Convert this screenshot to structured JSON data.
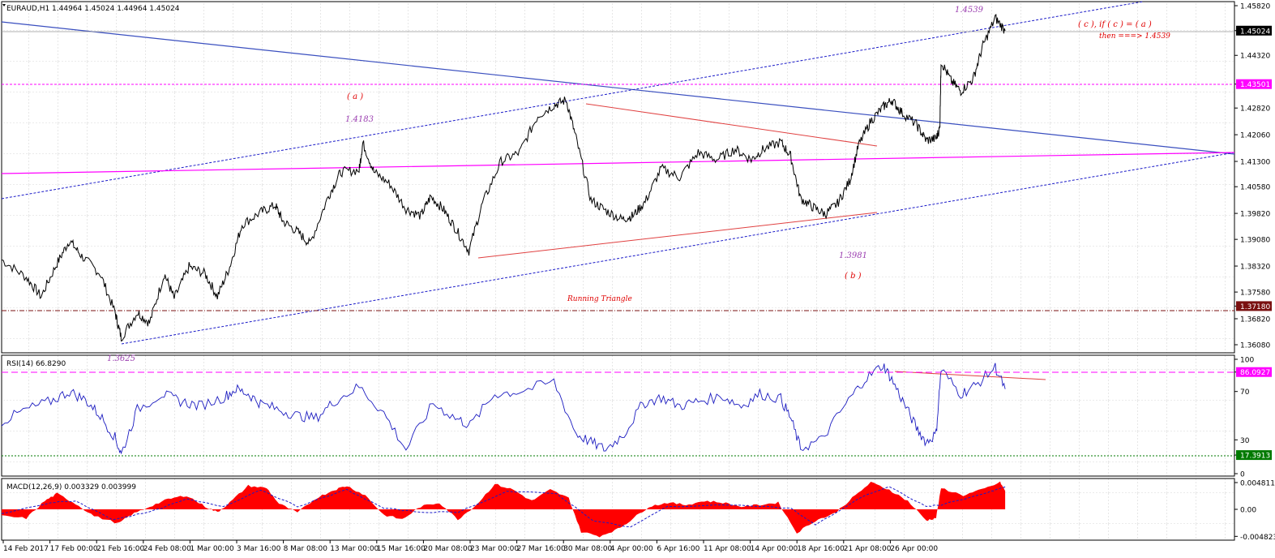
{
  "colors": {
    "price": "#000000",
    "channel": "#1a1ac8",
    "trend": "#3a4fbf",
    "triangle": "#e04040",
    "pink": "#ff00ff",
    "maroon": "#7a1010",
    "rsi": "#1b1bc0",
    "macd": "#ff0000",
    "signal": "#1a1ac8",
    "label_violet": "#9b3fb0",
    "label_red": "#e00000",
    "lvl_green": "#007a00",
    "grid": "#b0b0b0"
  },
  "chart_data": [
    {
      "type": "line",
      "panel": "price",
      "header": "EURAUD,H1  1.44964 1.45024 1.44964 1.45024",
      "ylim": [
        1.3585,
        1.4585
      ],
      "ticks": [
        "1.45820",
        "1.45024",
        "1.44320",
        "1.43501",
        "1.42820",
        "1.42060",
        "1.41300",
        "1.40580",
        "1.39820",
        "1.39080",
        "1.38320",
        "1.37580",
        "1.37180",
        "1.36820",
        "1.36080"
      ],
      "tick_values": [
        1.4582,
        1.45024,
        1.4432,
        1.43501,
        1.4282,
        1.4206,
        1.413,
        1.4058,
        1.3982,
        1.3908,
        1.3832,
        1.3758,
        1.3718,
        1.3682,
        1.3608
      ],
      "highlight_ticks": [
        {
          "label": "1.45024",
          "value": 1.45024,
          "color": "#000000"
        },
        {
          "label": "1.43501",
          "value": 1.43501,
          "color": "#ff00ff"
        },
        {
          "label": "1.37180",
          "value": 1.3718,
          "color": "#7a1010"
        }
      ],
      "series_points": [
        [
          0,
          1.385
        ],
        [
          0.02,
          1.38
        ],
        [
          0.032,
          1.3745
        ],
        [
          0.045,
          1.384
        ],
        [
          0.055,
          1.3905
        ],
        [
          0.065,
          1.386
        ],
        [
          0.08,
          1.381
        ],
        [
          0.092,
          1.37
        ],
        [
          0.097,
          1.3628
        ],
        [
          0.11,
          1.37
        ],
        [
          0.12,
          1.367
        ],
        [
          0.132,
          1.381
        ],
        [
          0.14,
          1.374
        ],
        [
          0.152,
          1.383
        ],
        [
          0.165,
          1.381
        ],
        [
          0.175,
          1.3745
        ],
        [
          0.185,
          1.383
        ],
        [
          0.195,
          1.395
        ],
        [
          0.21,
          1.3985
        ],
        [
          0.222,
          1.4005
        ],
        [
          0.228,
          1.396
        ],
        [
          0.24,
          1.393
        ],
        [
          0.25,
          1.3895
        ],
        [
          0.265,
          1.403
        ],
        [
          0.275,
          1.41
        ],
        [
          0.29,
          1.4105
        ],
        [
          0.293,
          1.4183
        ],
        [
          0.302,
          1.41
        ],
        [
          0.315,
          1.4065
        ],
        [
          0.328,
          1.3995
        ],
        [
          0.34,
          1.3975
        ],
        [
          0.348,
          1.403
        ],
        [
          0.358,
          1.3995
        ],
        [
          0.368,
          1.394
        ],
        [
          0.379,
          1.3875
        ],
        [
          0.39,
          1.401
        ],
        [
          0.405,
          1.413
        ],
        [
          0.42,
          1.4155
        ],
        [
          0.435,
          1.426
        ],
        [
          0.448,
          1.429
        ],
        [
          0.458,
          1.4305
        ],
        [
          0.466,
          1.4195
        ],
        [
          0.478,
          1.402
        ],
        [
          0.49,
          1.399
        ],
        [
          0.503,
          1.3965
        ],
        [
          0.512,
          1.3975
        ],
        [
          0.522,
          1.4015
        ],
        [
          0.535,
          1.411
        ],
        [
          0.55,
          1.4085
        ],
        [
          0.565,
          1.4155
        ],
        [
          0.58,
          1.4135
        ],
        [
          0.595,
          1.4165
        ],
        [
          0.608,
          1.4135
        ],
        [
          0.618,
          1.4165
        ],
        [
          0.632,
          1.4185
        ],
        [
          0.64,
          1.4145
        ],
        [
          0.648,
          1.4025
        ],
        [
          0.658,
          1.4
        ],
        [
          0.668,
          1.398
        ],
        [
          0.678,
          1.401
        ],
        [
          0.688,
          1.4075
        ],
        [
          0.695,
          1.4175
        ],
        [
          0.705,
          1.4245
        ],
        [
          0.715,
          1.4285
        ],
        [
          0.722,
          1.4305
        ],
        [
          0.73,
          1.427
        ],
        [
          0.742,
          1.4235
        ],
        [
          0.75,
          1.419
        ],
        [
          0.758,
          1.4195
        ],
        [
          0.761,
          1.4225
        ],
        [
          0.762,
          1.4415
        ],
        [
          0.77,
          1.436
        ],
        [
          0.778,
          1.433
        ],
        [
          0.788,
          1.4365
        ],
        [
          0.796,
          1.446
        ],
        [
          0.806,
          1.4539
        ],
        [
          0.814,
          1.4502
        ]
      ],
      "annotations": [
        {
          "text": "( a )",
          "color": "#e00000"
        },
        {
          "text": "1.4183",
          "color": "#9b3fb0"
        },
        {
          "text": "1.4539",
          "color": "#9b3fb0"
        },
        {
          "text": "( c ),  if ( c ) = ( a )",
          "color": "#e00000"
        },
        {
          "text": "then ===> 1.4539",
          "color": "#e00000"
        },
        {
          "text": "1.3981",
          "color": "#9b3fb0"
        },
        {
          "text": "( b )",
          "color": "#e00000"
        },
        {
          "text": "Running Triangle",
          "color": "#e00000"
        },
        {
          "text": "1.3625",
          "color": "#9b3fb0"
        }
      ]
    },
    {
      "type": "line",
      "panel": "rsi",
      "header": "RSI(14) 66.8290",
      "ylim": [
        0,
        100
      ],
      "ticks": [
        "100",
        "86.0927",
        "70",
        "30",
        "17.3913",
        "0"
      ],
      "tick_values": [
        100,
        86.0927,
        70,
        30,
        17.3913,
        0
      ],
      "levels": [
        {
          "value": 86.0927,
          "color": "#ff00ff",
          "label": "86.0927"
        },
        {
          "value": 17.3913,
          "color": "#007a00",
          "label": "17.3913"
        }
      ],
      "series_points": [
        [
          0,
          45
        ],
        [
          0.02,
          55
        ],
        [
          0.04,
          62
        ],
        [
          0.055,
          70
        ],
        [
          0.068,
          63
        ],
        [
          0.08,
          50
        ],
        [
          0.092,
          32
        ],
        [
          0.097,
          18
        ],
        [
          0.11,
          55
        ],
        [
          0.13,
          68
        ],
        [
          0.145,
          62
        ],
        [
          0.16,
          58
        ],
        [
          0.18,
          65
        ],
        [
          0.19,
          72
        ],
        [
          0.2,
          68
        ],
        [
          0.21,
          60
        ],
        [
          0.225,
          55
        ],
        [
          0.24,
          50
        ],
        [
          0.255,
          48
        ],
        [
          0.27,
          62
        ],
        [
          0.29,
          74
        ],
        [
          0.31,
          52
        ],
        [
          0.328,
          22
        ],
        [
          0.35,
          60
        ],
        [
          0.368,
          48
        ],
        [
          0.38,
          42
        ],
        [
          0.4,
          68
        ],
        [
          0.42,
          70
        ],
        [
          0.448,
          78
        ],
        [
          0.466,
          35
        ],
        [
          0.478,
          28
        ],
        [
          0.49,
          22
        ],
        [
          0.505,
          35
        ],
        [
          0.52,
          60
        ],
        [
          0.535,
          65
        ],
        [
          0.55,
          58
        ],
        [
          0.565,
          62
        ],
        [
          0.585,
          66
        ],
        [
          0.6,
          58
        ],
        [
          0.615,
          68
        ],
        [
          0.632,
          64
        ],
        [
          0.64,
          48
        ],
        [
          0.648,
          23
        ],
        [
          0.665,
          30
        ],
        [
          0.685,
          60
        ],
        [
          0.7,
          80
        ],
        [
          0.715,
          92
        ],
        [
          0.722,
          80
        ],
        [
          0.732,
          60
        ],
        [
          0.742,
          40
        ],
        [
          0.75,
          28
        ],
        [
          0.758,
          35
        ],
        [
          0.762,
          88
        ],
        [
          0.778,
          68
        ],
        [
          0.79,
          75
        ],
        [
          0.806,
          90
        ],
        [
          0.814,
          72
        ]
      ]
    },
    {
      "type": "area",
      "panel": "macd",
      "header": "MACD(12,26,9) 0.003329 0.003999",
      "ylim": [
        -0.0055,
        0.0055
      ],
      "ticks": [
        "0.004811",
        "0.00",
        "-0.004823"
      ],
      "tick_values": [
        0.004811,
        0,
        -0.004823
      ],
      "series_points": [
        [
          0,
          -0.0012
        ],
        [
          0.02,
          -0.0016
        ],
        [
          0.035,
          0.0015
        ],
        [
          0.045,
          0.0028
        ],
        [
          0.06,
          0.001
        ],
        [
          0.075,
          -0.0012
        ],
        [
          0.095,
          -0.0025
        ],
        [
          0.105,
          -0.001
        ],
        [
          0.12,
          0.0005
        ],
        [
          0.135,
          0.0018
        ],
        [
          0.15,
          0.0025
        ],
        [
          0.165,
          0.0005
        ],
        [
          0.175,
          -0.0005
        ],
        [
          0.185,
          0.0012
        ],
        [
          0.2,
          0.0042
        ],
        [
          0.215,
          0.0038
        ],
        [
          0.225,
          0.001
        ],
        [
          0.24,
          -0.0006
        ],
        [
          0.255,
          0.002
        ],
        [
          0.27,
          0.0035
        ],
        [
          0.28,
          0.0042
        ],
        [
          0.295,
          0.0025
        ],
        [
          0.31,
          -0.001
        ],
        [
          0.325,
          -0.0018
        ],
        [
          0.34,
          0.0005
        ],
        [
          0.355,
          0.0012
        ],
        [
          0.37,
          -0.0018
        ],
        [
          0.385,
          0.0008
        ],
        [
          0.4,
          0.0045
        ],
        [
          0.415,
          0.0035
        ],
        [
          0.43,
          0.0015
        ],
        [
          0.445,
          0.0035
        ],
        [
          0.46,
          0.002
        ],
        [
          0.47,
          -0.004
        ],
        [
          0.485,
          -0.0048
        ],
        [
          0.5,
          -0.0035
        ],
        [
          0.51,
          -0.002
        ],
        [
          0.525,
          0.0005
        ],
        [
          0.54,
          0.0012
        ],
        [
          0.555,
          0.0008
        ],
        [
          0.57,
          0.0015
        ],
        [
          0.585,
          0.0012
        ],
        [
          0.6,
          0.0005
        ],
        [
          0.615,
          0.0008
        ],
        [
          0.63,
          0.0012
        ],
        [
          0.645,
          -0.0042
        ],
        [
          0.66,
          -0.002
        ],
        [
          0.675,
          -0.0008
        ],
        [
          0.69,
          0.002
        ],
        [
          0.705,
          0.0048
        ],
        [
          0.72,
          0.0035
        ],
        [
          0.735,
          0.0015
        ],
        [
          0.75,
          -0.002
        ],
        [
          0.758,
          -0.0015
        ],
        [
          0.762,
          0.0038
        ],
        [
          0.78,
          0.0025
        ],
        [
          0.795,
          0.0035
        ],
        [
          0.81,
          0.0048
        ],
        [
          0.814,
          0.0033
        ]
      ],
      "signal_points": [
        [
          0,
          -0.0008
        ],
        [
          0.04,
          0.0012
        ],
        [
          0.06,
          0.0015
        ],
        [
          0.09,
          -0.0018
        ],
        [
          0.12,
          -0.0005
        ],
        [
          0.15,
          0.0018
        ],
        [
          0.18,
          0.0005
        ],
        [
          0.21,
          0.0035
        ],
        [
          0.24,
          0.0005
        ],
        [
          0.28,
          0.0035
        ],
        [
          0.31,
          0.0002
        ],
        [
          0.34,
          -0.0005
        ],
        [
          0.37,
          -0.0005
        ],
        [
          0.41,
          0.0032
        ],
        [
          0.45,
          0.0028
        ],
        [
          0.48,
          -0.002
        ],
        [
          0.51,
          -0.0032
        ],
        [
          0.54,
          0.0005
        ],
        [
          0.6,
          0.0008
        ],
        [
          0.64,
          0.0002
        ],
        [
          0.66,
          -0.0028
        ],
        [
          0.7,
          0.0025
        ],
        [
          0.72,
          0.004
        ],
        [
          0.75,
          0.0005
        ],
        [
          0.762,
          0.0008
        ],
        [
          0.8,
          0.003
        ],
        [
          0.814,
          0.004
        ]
      ]
    }
  ],
  "x_axis": {
    "labels": [
      "14 Feb 2017",
      "17 Feb 00:00",
      "21 Feb 16:00",
      "24 Feb 08:00",
      "1 Mar 00:00",
      "3 Mar 16:00",
      "8 Mar 08:00",
      "13 Mar 00:00",
      "15 Mar 16:00",
      "20 Mar 08:00",
      "23 Mar 00:00",
      "27 Mar 16:00",
      "30 Mar 08:00",
      "4 Apr 00:00",
      "6 Apr 16:00",
      "11 Apr 08:00",
      "14 Apr 00:00",
      "18 Apr 16:00",
      "21 Apr 08:00",
      "26 Apr 00:00"
    ]
  }
}
